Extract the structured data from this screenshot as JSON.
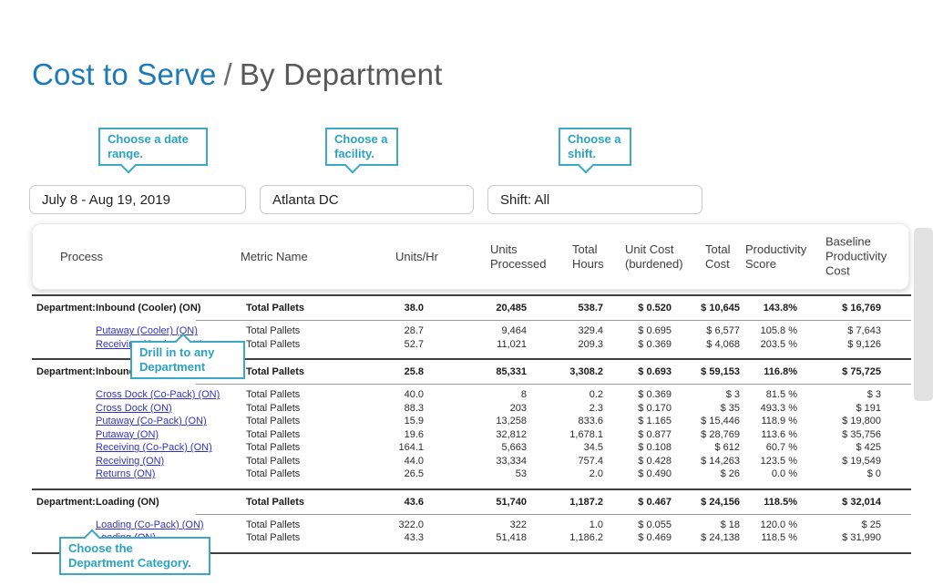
{
  "title": {
    "primary": "Cost to Serve",
    "separator": "/",
    "secondary": "By Department"
  },
  "callouts": {
    "date_range": "Choose a date range.",
    "facility": "Choose a facility.",
    "shift": "Choose a shift.",
    "drill": "Drill in to any Department",
    "category": "Choose the Department Category."
  },
  "filters": {
    "date_range": "July 8 - Aug 19, 2019",
    "facility": "Atlanta DC",
    "shift": "Shift: All"
  },
  "table": {
    "columns": [
      "Process",
      "Metric Name",
      "Units/Hr",
      "Units Processed",
      "Total Hours",
      "Unit Cost (burdened)",
      "Total Cost",
      "Productivity Score",
      "Baseline Productivity Cost"
    ],
    "department_label": "Department:",
    "sections": [
      {
        "department": {
          "process": "Inbound (Cooler) (ON)",
          "metric": "Total Pallets",
          "units_hr": "38.0",
          "units_processed": "20,485",
          "total_hours": "538.7",
          "unit_cost": "$ 0.520",
          "total_cost": "$ 10,645",
          "productivity": "143.8%",
          "baseline_cost": "$ 16,769"
        },
        "rows": [
          {
            "process": "Putaway (Cooler) (ON)",
            "metric": "Total Pallets",
            "units_hr": "28.7",
            "units_processed": "9,464",
            "total_hours": "329.4",
            "unit_cost": "$ 0.695",
            "total_cost": "$ 6,577",
            "productivity": "105.8 %",
            "baseline_cost": "$ 7,643"
          },
          {
            "process": "Receiving (Cooler) (ON)",
            "metric": "Total Pallets",
            "units_hr": "52.7",
            "units_processed": "11,021",
            "total_hours": "209.3",
            "unit_cost": "$ 0.369",
            "total_cost": "$ 4,068",
            "productivity": "203.5 %",
            "baseline_cost": "$ 9,126"
          }
        ]
      },
      {
        "department": {
          "process": "Inbound (ON)",
          "metric": "Total Pallets",
          "units_hr": "25.8",
          "units_processed": "85,331",
          "total_hours": "3,308.2",
          "unit_cost": "$ 0.693",
          "total_cost": "$ 59,153",
          "productivity": "116.8%",
          "baseline_cost": "$ 75,725"
        },
        "rows": [
          {
            "process": "Cross Dock (Co-Pack) (ON)",
            "metric": "Total Pallets",
            "units_hr": "40.0",
            "units_processed": "8",
            "total_hours": "0.2",
            "unit_cost": "$ 0.369",
            "total_cost": "$ 3",
            "productivity": "81.5 %",
            "baseline_cost": "$ 3"
          },
          {
            "process": "Cross Dock (ON)",
            "metric": "Total Pallets",
            "units_hr": "88.3",
            "units_processed": "203",
            "total_hours": "2.3",
            "unit_cost": "$ 0.170",
            "total_cost": "$ 35",
            "productivity": "493.3 %",
            "baseline_cost": "$ 191"
          },
          {
            "process": "Putaway (Co-Pack) (ON)",
            "metric": "Total Pallets",
            "units_hr": "15.9",
            "units_processed": "13,258",
            "total_hours": "833.6",
            "unit_cost": "$ 1.165",
            "total_cost": "$ 15,446",
            "productivity": "118.9 %",
            "baseline_cost": "$ 19,800"
          },
          {
            "process": "Putaway (ON)",
            "metric": "Total Pallets",
            "units_hr": "19.6",
            "units_processed": "32,812",
            "total_hours": "1,678.1",
            "unit_cost": "$ 0.877",
            "total_cost": "$ 28,769",
            "productivity": "113.6 %",
            "baseline_cost": "$ 35,756"
          },
          {
            "process": "Receiving (Co-Pack) (ON)",
            "metric": "Total Pallets",
            "units_hr": "164.1",
            "units_processed": "5,663",
            "total_hours": "34.5",
            "unit_cost": "$ 0.108",
            "total_cost": "$ 612",
            "productivity": "60.7 %",
            "baseline_cost": "$ 425"
          },
          {
            "process": "Receiving (ON)",
            "metric": "Total Pallets",
            "units_hr": "44.0",
            "units_processed": "33,334",
            "total_hours": "757.4",
            "unit_cost": "$ 0.428",
            "total_cost": "$ 14,263",
            "productivity": "123.5 %",
            "baseline_cost": "$ 19,549"
          },
          {
            "process": "Returns (ON)",
            "metric": "Total Pallets",
            "units_hr": "26.5",
            "units_processed": "53",
            "total_hours": "2.0",
            "unit_cost": "$ 0.490",
            "total_cost": "$ 26",
            "productivity": "0.0 %",
            "baseline_cost": "$ 0"
          }
        ]
      },
      {
        "department": {
          "process": "Loading (ON)",
          "metric": "Total Pallets",
          "units_hr": "43.6",
          "units_processed": "51,740",
          "total_hours": "1,187.2",
          "unit_cost": "$ 0.467",
          "total_cost": "$ 24,156",
          "productivity": "118.5%",
          "baseline_cost": "$ 32,014"
        },
        "rows": [
          {
            "process": "Loading (Co-Pack) (ON)",
            "metric": "Total Pallets",
            "units_hr": "322.0",
            "units_processed": "322",
            "total_hours": "1.0",
            "unit_cost": "$ 0.055",
            "total_cost": "$ 18",
            "productivity": "120.0 %",
            "baseline_cost": "$ 25"
          },
          {
            "process": "Loading (ON)",
            "metric": "Total Pallets",
            "units_hr": "43.3",
            "units_processed": "51,418",
            "total_hours": "1,186.2",
            "unit_cost": "$ 0.469",
            "total_cost": "$ 24,138",
            "productivity": "118.5 %",
            "baseline_cost": "$ 31,990"
          }
        ]
      }
    ]
  },
  "colors": {
    "accent_blue": "#1d7ab9",
    "callout_teal": "#3ba8c7",
    "link_blue": "#3232c0"
  }
}
